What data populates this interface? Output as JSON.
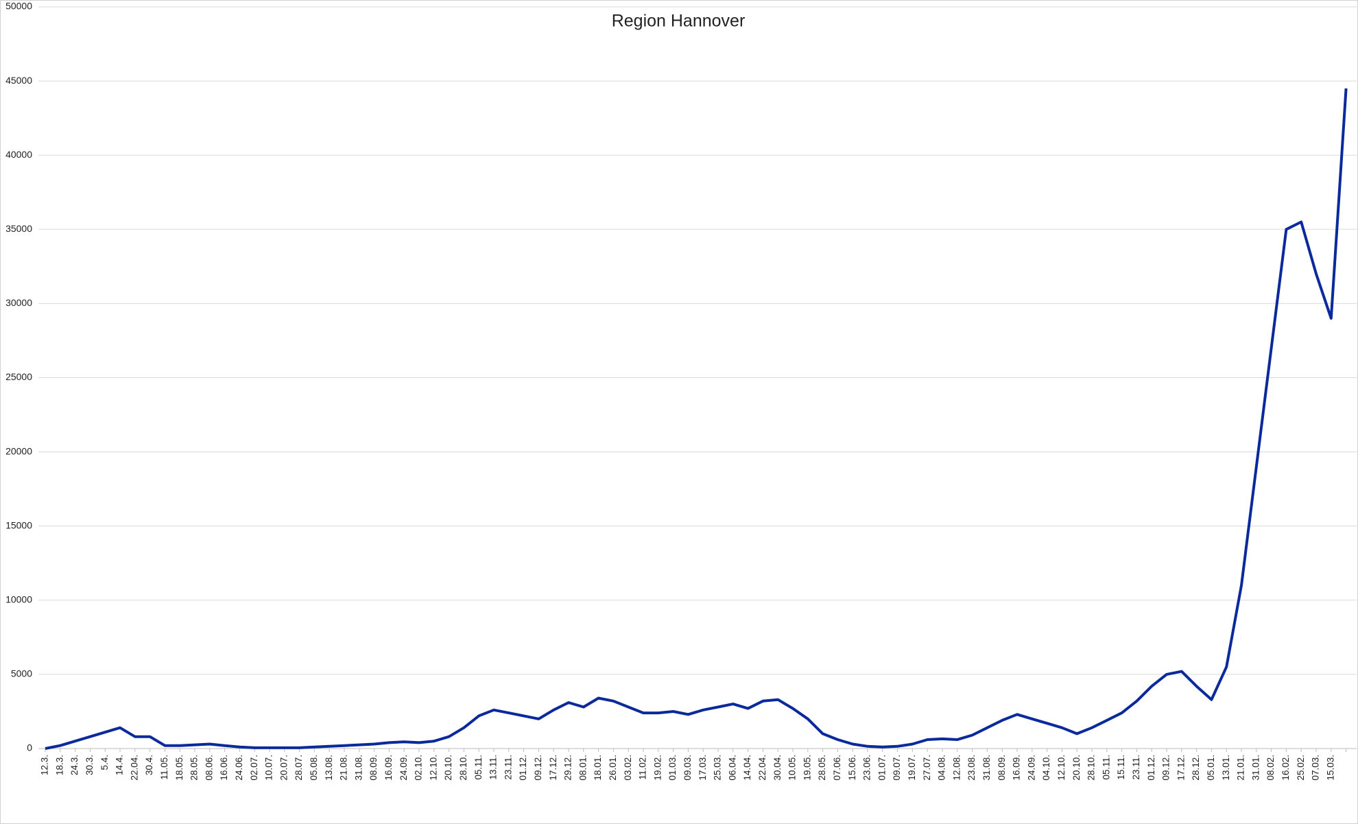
{
  "chart_data": {
    "type": "line",
    "title": "Region Hannover",
    "categories": [
      "12.3.",
      "18.3.",
      "24.3.",
      "30.3.",
      "5.4.",
      "14.4.",
      "22.04.",
      "30.4.",
      "11.05.",
      "18.05.",
      "28.05.",
      "08.06.",
      "16.06.",
      "24.06.",
      "02.07.",
      "10.07.",
      "20.07.",
      "28.07.",
      "05.08.",
      "13.08.",
      "21.08.",
      "31.08.",
      "08.09.",
      "16.09.",
      "24.09.",
      "02.10.",
      "12.10.",
      "20.10.",
      "28.10.",
      "05.11.",
      "13.11.",
      "23.11.",
      "01.12.",
      "09.12.",
      "17.12.",
      "29.12.",
      "08.01.",
      "18.01.",
      "26.01.",
      "03.02.",
      "11.02.",
      "19.02.",
      "01.03.",
      "09.03.",
      "17.03.",
      "25.03.",
      "06.04.",
      "14.04.",
      "22.04.",
      "30.04.",
      "10.05.",
      "19.05.",
      "28.05.",
      "07.06.",
      "15.06.",
      "23.06.",
      "01.07.",
      "09.07.",
      "19.07.",
      "27.07.",
      "04.08.",
      "12.08.",
      "23.08.",
      "31.08.",
      "08.09.",
      "16.09.",
      "24.09.",
      "04.10.",
      "12.10.",
      "20.10.",
      "28.10.",
      "05.11.",
      "15.11.",
      "23.11.",
      "01.12.",
      "09.12.",
      "17.12.",
      "28.12.",
      "05.01.",
      "13.01.",
      "21.01.",
      "31.01.",
      "08.02.",
      "16.02.",
      "25.02.",
      "07.03.",
      "15.03.",
      null
    ],
    "series": [
      {
        "name": "Region Hannover",
        "color": "#0a2a9c",
        "values": [
          0,
          200,
          500,
          800,
          1100,
          1400,
          800,
          800,
          200,
          200,
          250,
          300,
          200,
          100,
          50,
          50,
          50,
          50,
          100,
          150,
          200,
          250,
          300,
          400,
          450,
          400,
          500,
          800,
          1400,
          2200,
          2600,
          2400,
          2200,
          2000,
          2600,
          3100,
          2800,
          3400,
          3200,
          2800,
          2400,
          2400,
          2500,
          2300,
          2600,
          2800,
          3000,
          2700,
          3200,
          3300,
          2700,
          2000,
          1000,
          600,
          300,
          150,
          100,
          150,
          300,
          600,
          650,
          600,
          900,
          1400,
          1900,
          2300,
          2000,
          1700,
          1400,
          1000,
          1400,
          1900,
          2400,
          3200,
          4200,
          5000,
          5200,
          4200,
          3300,
          5500,
          11000,
          19000,
          27000,
          35000,
          35500,
          32000,
          29000,
          44500
        ]
      }
    ],
    "ylim": [
      0,
      50000
    ],
    "yticks": [
      0,
      5000,
      10000,
      15000,
      20000,
      25000,
      30000,
      35000,
      40000,
      45000,
      50000
    ],
    "grid": true
  }
}
